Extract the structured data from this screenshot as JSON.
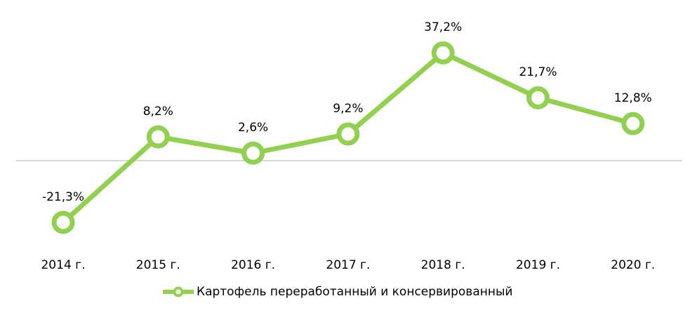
{
  "chart_data": {
    "type": "line",
    "title": "",
    "xlabel": "",
    "ylabel": "",
    "categories": [
      "2014 г.",
      "2015 г.",
      "2016 г.",
      "2017 г.",
      "2018 г.",
      "2019 г.",
      "2020 г."
    ],
    "series": [
      {
        "name": "Картофель переработанный и консервированный",
        "values": [
          -21.3,
          8.2,
          2.6,
          9.2,
          37.2,
          21.7,
          12.8
        ],
        "labels": [
          "-21,3%",
          "8,2%",
          "2,6%",
          "9,2%",
          "37,2%",
          "21,7%",
          "12,8%"
        ],
        "color": "#92d050"
      }
    ],
    "grid": false,
    "zero_line": true,
    "legend_position": "bottom"
  },
  "colors": {
    "series": "#92d050",
    "axis": "#d9d9d9"
  },
  "legend": {
    "label": "Картофель переработанный и консервированный"
  }
}
